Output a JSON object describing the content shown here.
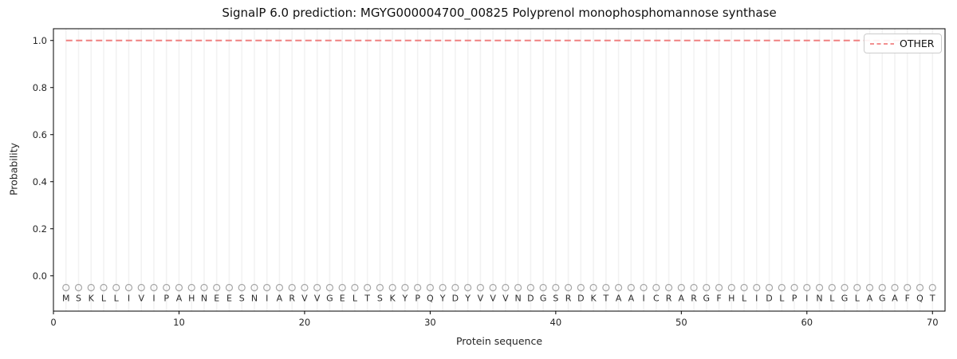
{
  "title": "SignalP 6.0 prediction: MGYG000004700_00825 Polyprenol monophosphomannose synthase",
  "axes": {
    "x_label": "Protein sequence",
    "y_label": "Probability"
  },
  "legend": {
    "label": "OTHER",
    "line_color": "#f08080",
    "position": "upper right"
  },
  "colors": {
    "grid": "#f2f2f2",
    "spine": "#000000",
    "tick_text": "#262626",
    "sequence_text": "#2b2b2b",
    "marker": "#a6a6a6",
    "other_line": "#f08080",
    "background": "#ffffff"
  },
  "chart_data": {
    "type": "line",
    "title": "SignalP 6.0 prediction: MGYG000004700_00825 Polyprenol monophosphomannose synthase",
    "xlabel": "Protein sequence",
    "ylabel": "Probability",
    "xlim": [
      0,
      71
    ],
    "ylim": [
      -0.15,
      1.05
    ],
    "x_ticks": [
      0,
      10,
      20,
      30,
      40,
      50,
      60,
      70
    ],
    "y_ticks": [
      "0.0",
      "0.2",
      "0.4",
      "0.6",
      "0.8",
      "1.0"
    ],
    "grid": "vertical gridline at every residue position",
    "legend_position": "upper right",
    "series": [
      {
        "name": "OTHER",
        "color": "#f08080",
        "line_style": "dashed",
        "line_width": 2,
        "x": [
          1,
          2,
          3,
          4,
          5,
          6,
          7,
          8,
          9,
          10,
          11,
          12,
          13,
          14,
          15,
          16,
          17,
          18,
          19,
          20,
          21,
          22,
          23,
          24,
          25,
          26,
          27,
          28,
          29,
          30,
          31,
          32,
          33,
          34,
          35,
          36,
          37,
          38,
          39,
          40,
          41,
          42,
          43,
          44,
          45,
          46,
          47,
          48,
          49,
          50,
          51,
          52,
          53,
          54,
          55,
          56,
          57,
          58,
          59,
          60,
          61,
          62,
          63,
          64,
          65,
          66,
          67,
          68,
          69,
          70
        ],
        "y": [
          1.0,
          1.0,
          1.0,
          1.0,
          1.0,
          1.0,
          1.0,
          1.0,
          1.0,
          1.0,
          1.0,
          1.0,
          1.0,
          1.0,
          1.0,
          1.0,
          1.0,
          1.0,
          1.0,
          1.0,
          1.0,
          1.0,
          1.0,
          1.0,
          1.0,
          1.0,
          1.0,
          1.0,
          1.0,
          1.0,
          1.0,
          1.0,
          1.0,
          1.0,
          1.0,
          1.0,
          1.0,
          1.0,
          1.0,
          1.0,
          1.0,
          1.0,
          1.0,
          1.0,
          1.0,
          1.0,
          1.0,
          1.0,
          1.0,
          1.0,
          1.0,
          1.0,
          1.0,
          1.0,
          1.0,
          1.0,
          1.0,
          1.0,
          1.0,
          1.0,
          1.0,
          1.0,
          1.0,
          1.0,
          1.0,
          1.0,
          1.0,
          1.0,
          1.0,
          1.0
        ]
      }
    ],
    "sequence": "MSKLLIVIPAHNEESNIARVVGELTSKYPQYDYVVVNDGSRDKTAAICRARGFHLIDLPINLGLAGAFQT",
    "sequence_marker": {
      "symbol": "circle-open",
      "y": -0.05,
      "color": "#a6a6a6",
      "radius": 4
    }
  }
}
